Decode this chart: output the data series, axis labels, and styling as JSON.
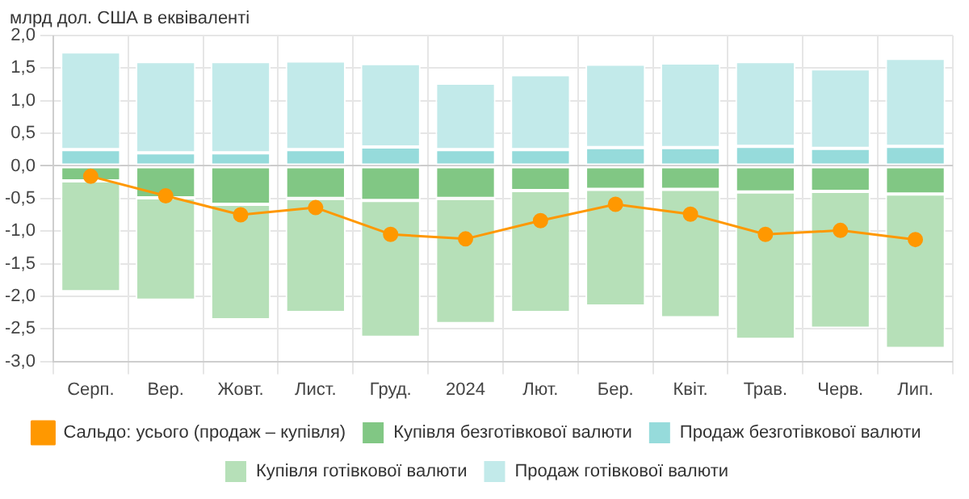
{
  "chart_data": {
    "type": "bar",
    "stacked": true,
    "ylabel": "млрд дол. США в еквіваленті",
    "categories": [
      "Серп.",
      "Вер.",
      "Жовт.",
      "Лист.",
      "Груд.",
      "2024",
      "Лют.",
      "Бер.",
      "Квіт.",
      "Трав.",
      "Черв.",
      "Лип."
    ],
    "series": [
      {
        "name": "Купівля безготівкової валюти",
        "color": "#81c784",
        "values": [
          -0.23,
          -0.49,
          -0.59,
          -0.5,
          -0.53,
          -0.5,
          -0.38,
          -0.36,
          -0.36,
          -0.4,
          -0.39,
          -0.43
        ]
      },
      {
        "name": "Продаж безготівкової валюти",
        "color": "#96dbdb",
        "values": [
          0.25,
          0.2,
          0.2,
          0.25,
          0.29,
          0.25,
          0.25,
          0.28,
          0.28,
          0.3,
          0.27,
          0.3
        ]
      },
      {
        "name": "Купівля готівкової валюти",
        "color": "#b6e0b8",
        "values": [
          -1.7,
          -1.57,
          -1.77,
          -1.75,
          -2.1,
          -1.92,
          -1.87,
          -1.79,
          -1.97,
          -2.26,
          -2.1,
          -2.37
        ]
      },
      {
        "name": "Продаж готівкової валюти",
        "color": "#c2eaea",
        "values": [
          1.5,
          1.4,
          1.4,
          1.36,
          1.28,
          1.02,
          1.15,
          1.28,
          1.3,
          1.3,
          1.22,
          1.35
        ]
      },
      {
        "name": "Сальдо: усього (продаж – купівля)",
        "type": "line",
        "color": "#ff9800",
        "marker": "circle",
        "values": [
          -0.16,
          -0.46,
          -0.75,
          -0.64,
          -1.05,
          -1.12,
          -0.84,
          -0.59,
          -0.74,
          -1.05,
          -0.99,
          -1.13
        ]
      }
    ],
    "ylim": [
      -3,
      2
    ],
    "yticks": [
      {
        "value": 2,
        "label": "2,0"
      },
      {
        "value": 1.5,
        "label": "1,5"
      },
      {
        "value": 1,
        "label": "1,0"
      },
      {
        "value": 0.5,
        "label": "0,5"
      },
      {
        "value": 0,
        "label": "0,0"
      },
      {
        "value": -0.5,
        "label": "-0,5"
      },
      {
        "value": -1,
        "label": "-1,0"
      },
      {
        "value": -1.5,
        "label": "-1,5"
      },
      {
        "value": -2,
        "label": "-2,0"
      },
      {
        "value": -2.5,
        "label": "-2,5"
      },
      {
        "value": -3,
        "label": "-3,0"
      }
    ],
    "grid": true,
    "legend": "bottom"
  }
}
